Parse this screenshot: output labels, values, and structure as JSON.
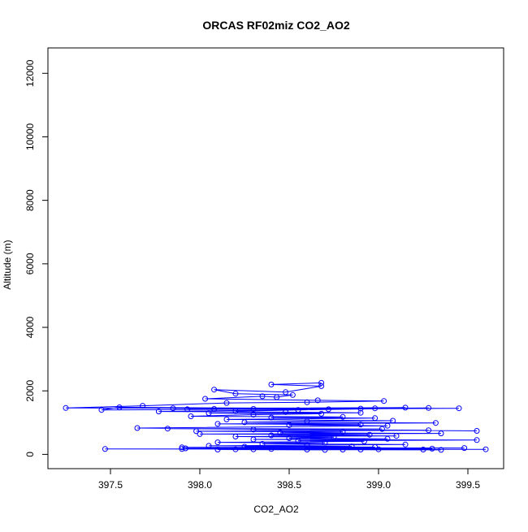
{
  "chart_data": {
    "type": "scatter",
    "title": "ORCAS RF02miz CO2_AO2",
    "xlabel": "CO2_AO2",
    "ylabel": "Altitude (m)",
    "xlim": [
      397.15,
      399.7
    ],
    "ylim": [
      -450,
      12800
    ],
    "xticks": [
      "397.5",
      "398.0",
      "398.5",
      "399.0",
      "399.5"
    ],
    "yticks": [
      "0",
      "2000",
      "4000",
      "6000",
      "8000",
      "10000",
      "12000"
    ],
    "grid": false,
    "series": [
      {
        "color": "#0000ff",
        "marker": "open-circle",
        "line": true,
        "points": [
          [
            398.68,
            2250
          ],
          [
            398.4,
            2200
          ],
          [
            398.68,
            2150
          ],
          [
            398.48,
            1960
          ],
          [
            398.08,
            2040
          ],
          [
            398.2,
            1910
          ],
          [
            398.52,
            1870
          ],
          [
            398.43,
            1800
          ],
          [
            398.35,
            1830
          ],
          [
            398.03,
            1750
          ],
          [
            398.66,
            1700
          ],
          [
            399.03,
            1680
          ],
          [
            398.6,
            1640
          ],
          [
            398.15,
            1620
          ],
          [
            397.68,
            1530
          ],
          [
            397.25,
            1460
          ],
          [
            399.45,
            1450
          ],
          [
            397.45,
            1400
          ],
          [
            397.55,
            1480
          ],
          [
            398.9,
            1440
          ],
          [
            397.85,
            1450
          ],
          [
            399.15,
            1470
          ],
          [
            398.3,
            1430
          ],
          [
            397.93,
            1420
          ],
          [
            398.98,
            1450
          ],
          [
            398.08,
            1430
          ],
          [
            399.28,
            1460
          ],
          [
            398.55,
            1400
          ],
          [
            398.2,
            1360
          ],
          [
            398.72,
            1420
          ],
          [
            397.77,
            1350
          ],
          [
            398.48,
            1330
          ],
          [
            398.9,
            1310
          ],
          [
            398.05,
            1300
          ],
          [
            398.68,
            1280
          ],
          [
            398.3,
            1250
          ],
          [
            397.95,
            1200
          ],
          [
            398.8,
            1180
          ],
          [
            398.4,
            1160
          ],
          [
            398.98,
            1140
          ],
          [
            398.15,
            1100
          ],
          [
            399.08,
            1060
          ],
          [
            398.6,
            1040
          ],
          [
            398.25,
            1010
          ],
          [
            399.32,
            990
          ],
          [
            398.1,
            960
          ],
          [
            398.9,
            940
          ],
          [
            398.5,
            920
          ],
          [
            399.05,
            900
          ],
          [
            397.65,
            830
          ],
          [
            399.55,
            740
          ],
          [
            397.82,
            810
          ],
          [
            399.02,
            800
          ],
          [
            398.3,
            780
          ],
          [
            399.28,
            760
          ],
          [
            397.98,
            730
          ],
          [
            398.8,
            710
          ],
          [
            398.45,
            680
          ],
          [
            399.35,
            660
          ],
          [
            398.0,
            640
          ],
          [
            398.95,
            620
          ],
          [
            398.4,
            600
          ],
          [
            399.1,
            580
          ],
          [
            398.2,
            560
          ],
          [
            398.75,
            540
          ],
          [
            398.5,
            510
          ],
          [
            399.05,
            490
          ],
          [
            398.3,
            470
          ],
          [
            399.55,
            450
          ],
          [
            398.55,
            430
          ],
          [
            398.92,
            410
          ],
          [
            398.1,
            380
          ],
          [
            398.7,
            360
          ],
          [
            398.35,
            330
          ],
          [
            399.15,
            310
          ],
          [
            398.6,
            290
          ],
          [
            398.05,
            270
          ],
          [
            398.85,
            250
          ],
          [
            398.25,
            240
          ],
          [
            398.98,
            230
          ],
          [
            397.9,
            220
          ],
          [
            399.48,
            200
          ],
          [
            397.92,
            190
          ],
          [
            399.3,
            180
          ],
          [
            397.47,
            170
          ],
          [
            399.6,
            160
          ],
          [
            397.9,
            170
          ],
          [
            399.25,
            150
          ],
          [
            398.2,
            160
          ],
          [
            398.8,
            150
          ],
          [
            398.4,
            170
          ],
          [
            399.0,
            160
          ],
          [
            398.6,
            150
          ],
          [
            399.35,
            140
          ],
          [
            398.1,
            150
          ],
          [
            398.7,
            140
          ],
          [
            398.3,
            160
          ],
          [
            398.9,
            150
          ]
        ]
      }
    ]
  }
}
